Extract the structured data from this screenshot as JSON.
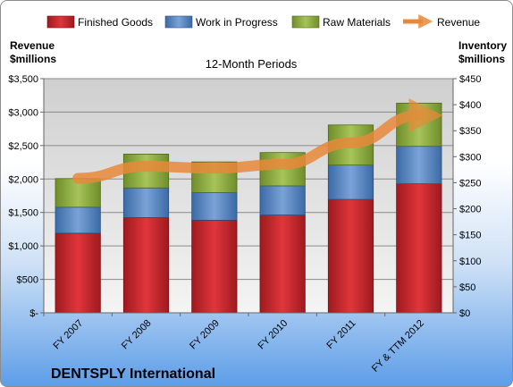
{
  "chart_data": {
    "type": "bar",
    "stacked": true,
    "title": "12-Month Periods",
    "footer": "DENTSPLY International",
    "categories": [
      "FY 2007",
      "FY 2008",
      "FY 2009",
      "FY 2010",
      "FY 2011",
      "FY & TTM 2012"
    ],
    "left_axis": {
      "label_line1": "Revenue",
      "label_line2": "$millions",
      "ylim": [
        0,
        3500
      ],
      "ticks": [
        0,
        500,
        1000,
        1500,
        2000,
        2500,
        3000,
        3500
      ],
      "tick_labels": [
        "$-",
        "$500",
        "$1,000",
        "$1,500",
        "$2,000",
        "$2,500",
        "$3,000",
        "$3,500"
      ]
    },
    "right_axis": {
      "label_line1": "Inventory",
      "label_line2": "$millions",
      "ylim": [
        0,
        450
      ],
      "ticks": [
        0,
        50,
        100,
        150,
        200,
        250,
        300,
        350,
        400,
        450
      ],
      "tick_labels": [
        "$0",
        "$50",
        "$100",
        "$150",
        "$200",
        "$250",
        "$300",
        "$350",
        "$400",
        "$450"
      ]
    },
    "series": [
      {
        "name": "Finished Goods",
        "axis": "right",
        "color": "#c0262b",
        "values": [
          153,
          183,
          178,
          188,
          218,
          248
        ]
      },
      {
        "name": "Work in Progress",
        "axis": "right",
        "color": "#4f7fbf",
        "values": [
          50,
          57,
          53,
          56,
          66,
          72
        ]
      },
      {
        "name": "Raw Materials",
        "axis": "right",
        "color": "#8aaa3b",
        "values": [
          55,
          65,
          59,
          64,
          77,
          83
        ]
      },
      {
        "name": "Revenue",
        "type": "line",
        "axis": "left",
        "color": "#e8893a",
        "values": [
          2010,
          2190,
          2160,
          2220,
          2540,
          2950
        ]
      }
    ],
    "grid": true,
    "legend_position": "top"
  }
}
